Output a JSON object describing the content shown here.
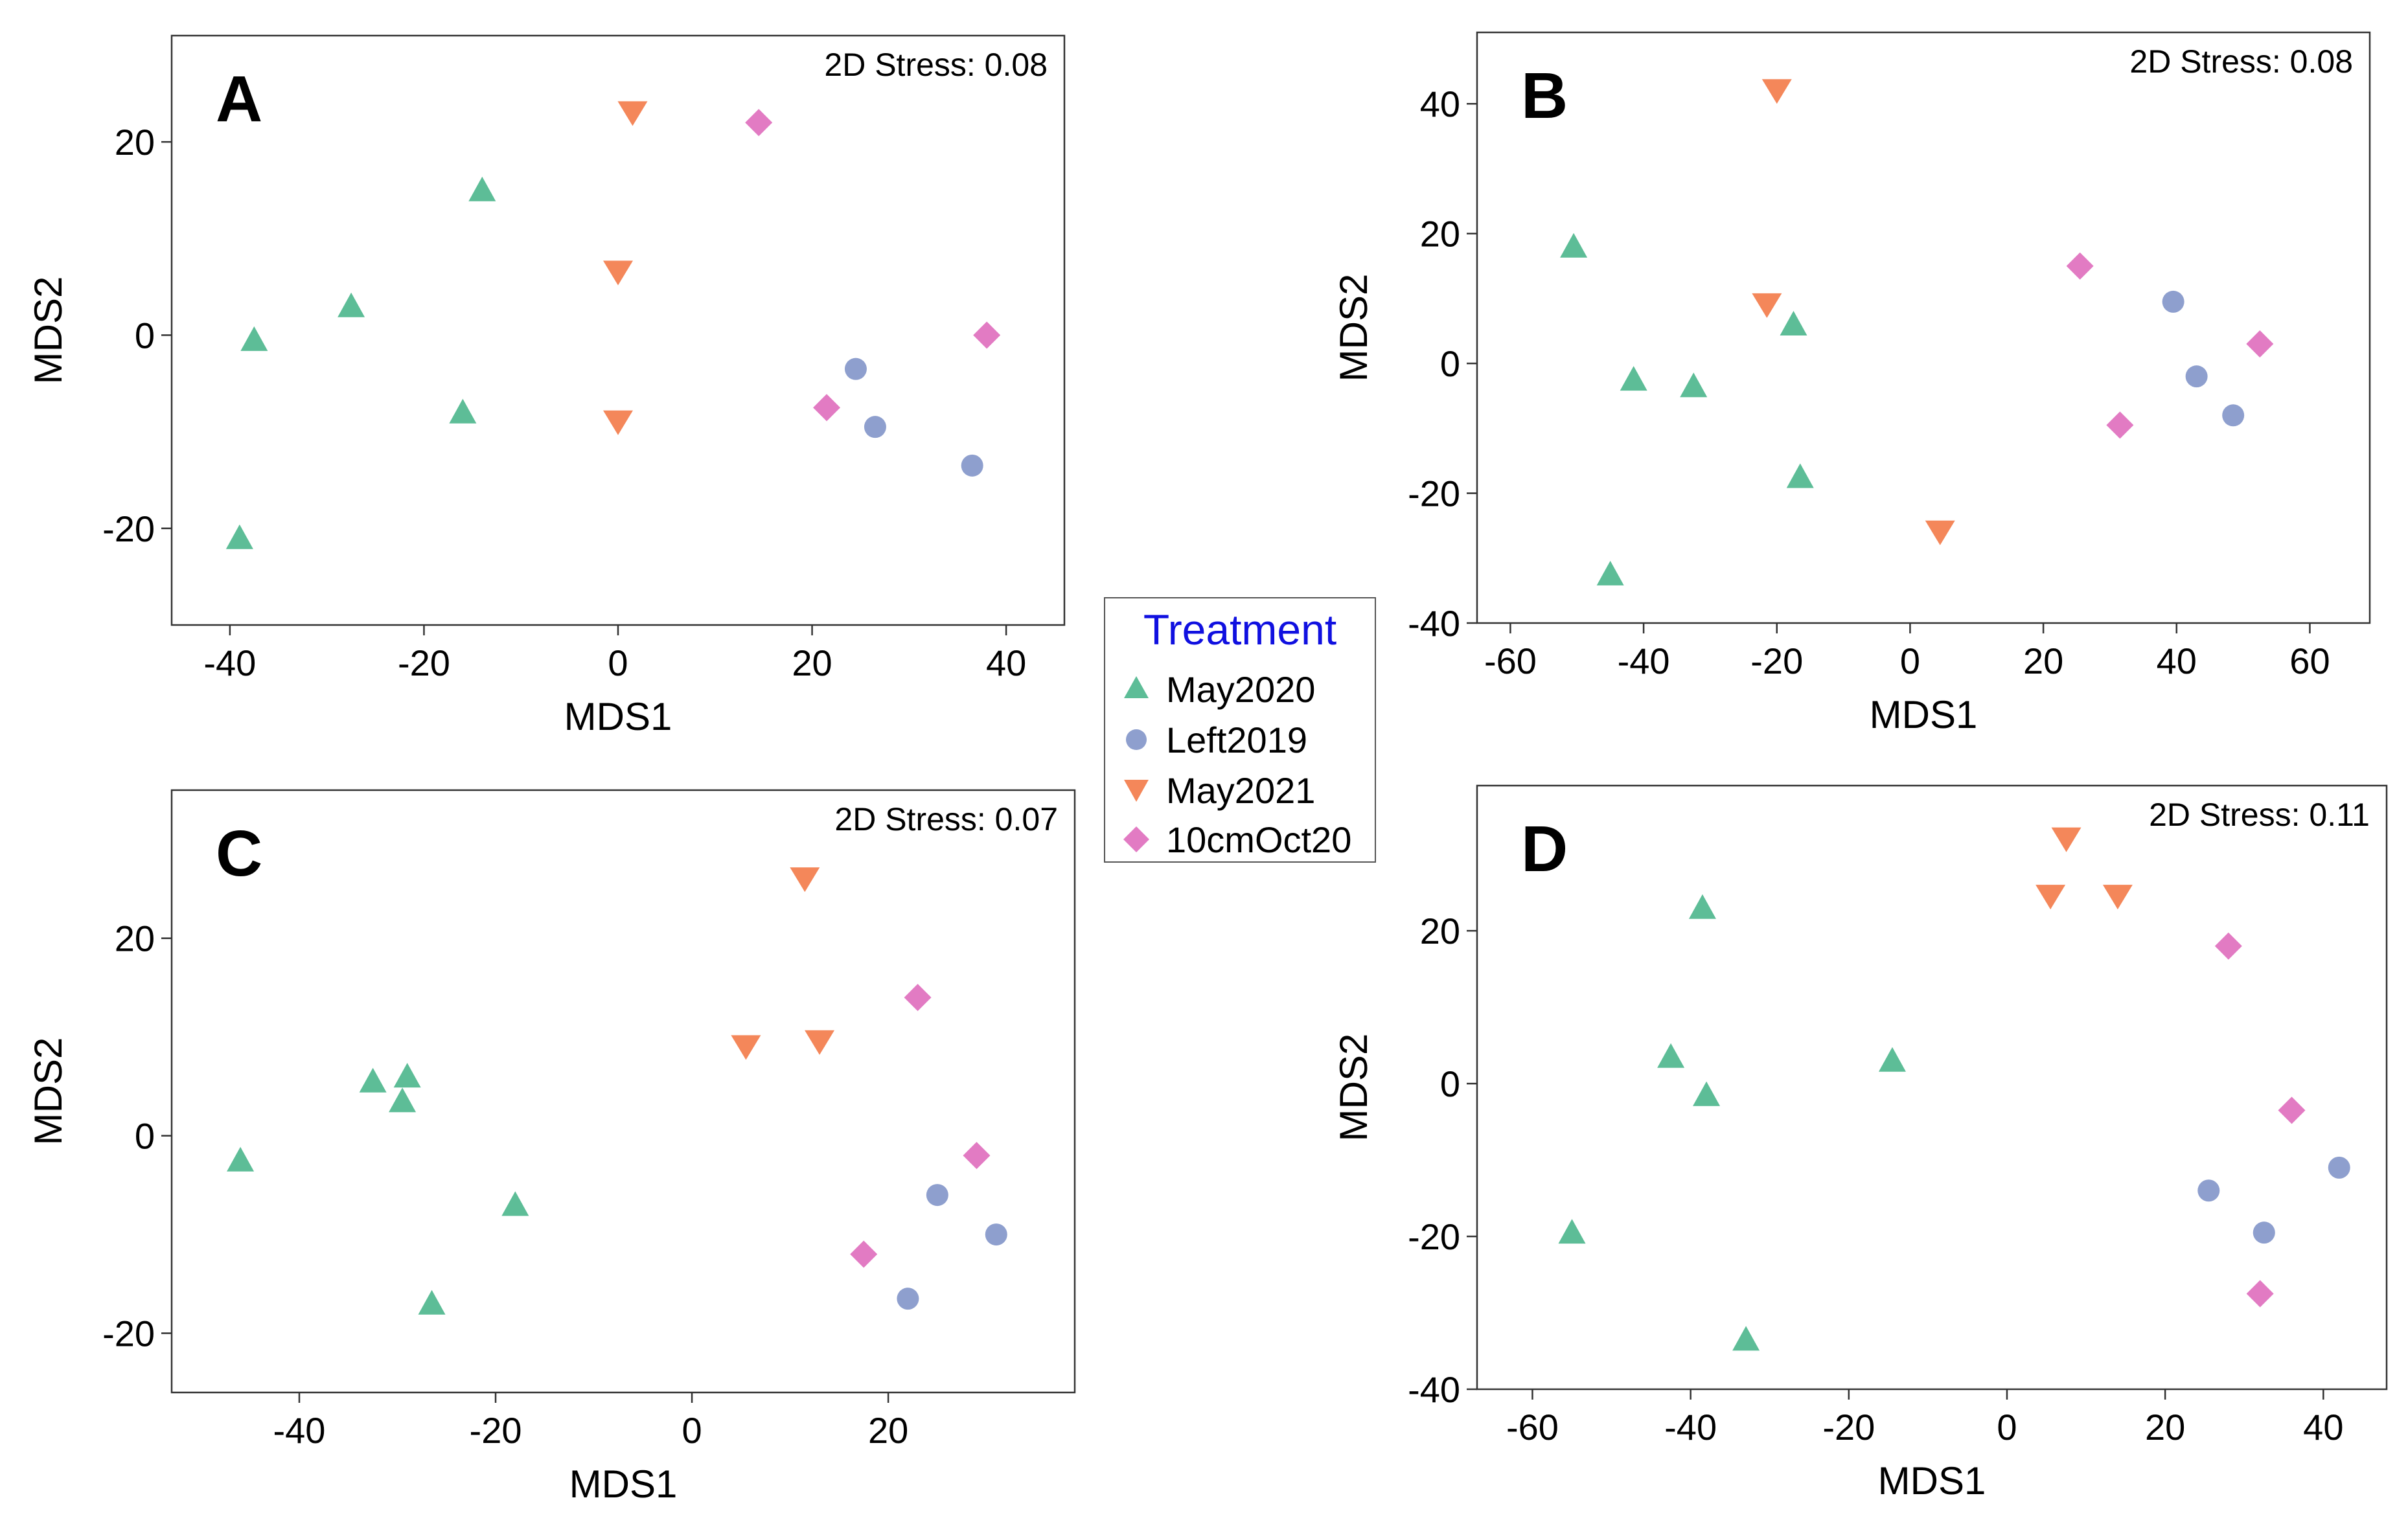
{
  "colors": {
    "May2020": "#5dbd97",
    "Left2019": "#8e9fce",
    "May2021": "#f4875a",
    "10cmOct20": "#e27bc3"
  },
  "legend": {
    "title": "Treatment",
    "items": [
      {
        "key": "May2020",
        "label": "May2020",
        "marker": "triangle-up"
      },
      {
        "key": "Left2019",
        "label": "Left2019",
        "marker": "circle"
      },
      {
        "key": "May2021",
        "label": "May2021",
        "marker": "triangle-down"
      },
      {
        "key": "10cmOct20",
        "label": "10cmOct20",
        "marker": "diamond"
      }
    ]
  },
  "chart_data": [
    {
      "type": "scatter",
      "panel": "A",
      "annotation": "2D Stress: 0.08",
      "xlabel": "MDS1",
      "ylabel": "MDS2",
      "xlim": [
        -46,
        46
      ],
      "ylim": [
        -30,
        31
      ],
      "xticks": [
        -40,
        -20,
        0,
        20,
        40
      ],
      "yticks": [
        -20,
        0,
        20
      ],
      "series": [
        {
          "name": "May2020",
          "x": [
            -37.5,
            -27.5,
            -14,
            -16,
            -39
          ],
          "y": [
            -0.5,
            3,
            15,
            -8,
            -21
          ]
        },
        {
          "name": "Left2019",
          "x": [
            24.5,
            26.5,
            36.5
          ],
          "y": [
            -3.5,
            -9.5,
            -13.5
          ]
        },
        {
          "name": "May2021",
          "x": [
            1.5,
            0,
            0
          ],
          "y": [
            23,
            6.5,
            -9
          ]
        },
        {
          "name": "10cmOct20",
          "x": [
            14.5,
            38,
            21.5
          ],
          "y": [
            22,
            0,
            -7.5
          ]
        }
      ]
    },
    {
      "type": "scatter",
      "panel": "B",
      "annotation": "2D Stress: 0.08",
      "xlabel": "MDS1",
      "ylabel": "MDS2",
      "xlim": [
        -65,
        69
      ],
      "ylim": [
        -40,
        51
      ],
      "xticks": [
        -60,
        -40,
        -20,
        0,
        20,
        40,
        60
      ],
      "yticks": [
        -40,
        -20,
        0,
        20,
        40
      ],
      "series": [
        {
          "name": "May2020",
          "x": [
            -50.5,
            -41.5,
            -32.5,
            -17.5,
            -16.5,
            -45
          ],
          "y": [
            18,
            -2.5,
            -3.5,
            6,
            -17.5,
            -32.5
          ]
        },
        {
          "name": "Left2019",
          "x": [
            39.5,
            43,
            48.5
          ],
          "y": [
            9.5,
            -2,
            -8
          ]
        },
        {
          "name": "May2021",
          "x": [
            -20,
            -21.5,
            4.5
          ],
          "y": [
            42,
            9,
            -26
          ]
        },
        {
          "name": "10cmOct20",
          "x": [
            25.5,
            52.5,
            31.5
          ],
          "y": [
            15,
            3,
            -9.5
          ]
        }
      ]
    },
    {
      "type": "scatter",
      "panel": "C",
      "annotation": "2D Stress: 0.07",
      "xlabel": "MDS1",
      "ylabel": "MDS2",
      "xlim": [
        -53,
        39
      ],
      "ylim": [
        -26,
        35
      ],
      "xticks": [
        -40,
        -20,
        0,
        20
      ],
      "yticks": [
        -20,
        0,
        20
      ],
      "series": [
        {
          "name": "May2020",
          "x": [
            -32.5,
            -29,
            -29.5,
            -46,
            -18,
            -26.5
          ],
          "y": [
            5.5,
            6,
            3.5,
            -2.5,
            -7,
            -17
          ]
        },
        {
          "name": "Left2019",
          "x": [
            25,
            31,
            22
          ],
          "y": [
            -6,
            -10,
            -16.5
          ]
        },
        {
          "name": "May2021",
          "x": [
            11.5,
            5.5,
            13
          ],
          "y": [
            26,
            9,
            9.5
          ]
        },
        {
          "name": "10cmOct20",
          "x": [
            23,
            29,
            17.5
          ],
          "y": [
            14,
            -2,
            -12
          ]
        }
      ]
    },
    {
      "type": "scatter",
      "panel": "D",
      "annotation": "2D Stress: 0.11",
      "xlabel": "MDS1",
      "ylabel": "MDS2",
      "xlim": [
        -67,
        48
      ],
      "ylim": [
        -40,
        39
      ],
      "xticks": [
        -60,
        -40,
        -20,
        0,
        20,
        40
      ],
      "yticks": [
        -40,
        -20,
        0,
        20
      ],
      "series": [
        {
          "name": "May2020",
          "x": [
            -38.5,
            -42.5,
            -38,
            -14.5,
            -55,
            -33
          ],
          "y": [
            23,
            3.5,
            -1.5,
            3,
            -19.5,
            -33.5
          ]
        },
        {
          "name": "Left2019",
          "x": [
            25.5,
            32.5,
            42
          ],
          "y": [
            -14,
            -19.5,
            -11
          ]
        },
        {
          "name": "May2021",
          "x": [
            7.5,
            5.5,
            14
          ],
          "y": [
            32,
            24.5,
            24.5
          ]
        },
        {
          "name": "10cmOct20",
          "x": [
            28,
            36,
            32
          ],
          "y": [
            18,
            -3.5,
            -27.5
          ]
        }
      ]
    }
  ]
}
